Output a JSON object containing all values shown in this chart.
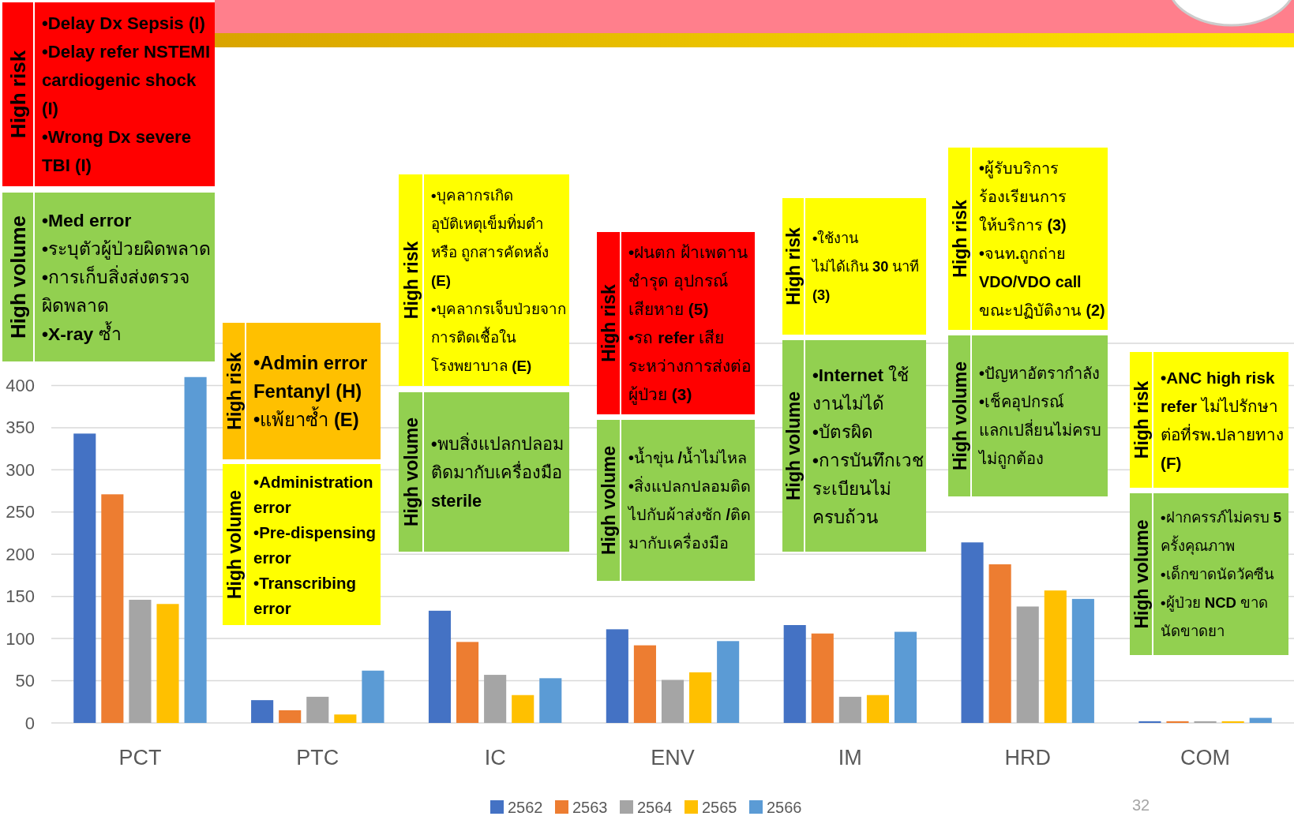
{
  "chart_data": {
    "type": "bar",
    "categories": [
      "PCT",
      "PTC",
      "IC",
      "ENV",
      "IM",
      "HRD",
      "COM"
    ],
    "series": [
      {
        "name": "2562",
        "color": "#4472c4",
        "values": [
          343,
          27,
          133,
          111,
          116,
          214,
          2
        ]
      },
      {
        "name": "2563",
        "color": "#ed7d31",
        "values": [
          271,
          15,
          96,
          92,
          106,
          188,
          2
        ]
      },
      {
        "name": "2564",
        "color": "#a5a5a5",
        "values": [
          146,
          31,
          57,
          51,
          31,
          138,
          2
        ]
      },
      {
        "name": "2565",
        "color": "#ffc000",
        "values": [
          141,
          10,
          33,
          60,
          33,
          157,
          2
        ]
      },
      {
        "name": "2566",
        "color": "#5b9bd5",
        "values": [
          410,
          62,
          53,
          97,
          108,
          147,
          6
        ]
      }
    ],
    "ylim": [
      0,
      450
    ],
    "yticks": [
      0,
      50,
      100,
      150,
      200,
      250,
      300,
      350,
      400,
      {
        "value": 450,
        "label": null
      }
    ],
    "grid": "y",
    "legend": "bottom",
    "annotations": [
      "High risk",
      "•Delay Dx Sepsis (I)\n•Delay refer NSTEMI\ncardiogenic shock\n(I)\n•Wrong Dx severe\nTBI (I)",
      "High volume",
      "•Med error\n•ระบุตัวผู้ป่วยผิดพลาด\n•การเก็บสิ่งส่งตรวจ\nผิดพลาด\n•X-ray ซ้ำ",
      "High risk",
      "•Admin error\nFentanyl (H)\n•แพ้ยาซ้ำ (E)",
      "High volume",
      "•Administration\nerror\n•Pre-dispensing\nerror\n•Transcribing\nerror",
      "High risk",
      "•บุคลากรเกิด\nอุบัติเหตุเข็มทิ่มตำ\nหรือ ถูกสารคัดหลั่ง\n(E)\n•บุคลากรเจ็บป่วยจาก\nการติดเชื้อใน\nโรงพยาบาล (E)",
      "High volume",
      "•พบสิ่งแปลกปลอม\nติดมากับเครื่องมือ\nsterile",
      "High risk",
      "•ฝนตก ฝ้าเพดาน\nชำรุด อุปกรณ์\nเสียหาย (5)\n•รถ refer เสีย\nระหว่างการส่งต่อ\nผู้ป่วย (3)",
      "High volume",
      "•น้ำขุ่น /น้ำไม่ไหล\n•สิ่งแปลกปลอมติด\nไปกับผ้าส่งซัก /ติด\nมากับเครื่องมือ",
      "High risk",
      "•ใช้งาน\nไม่ได้เกิน 30 นาที\n(3)",
      "High volume",
      "•Internet ใช้\nงานไม่ได้\n•บัตรผิด\n•การบันทึกเวช\nระเบียนไม่\nครบถ้วน",
      "High risk",
      "•ผู้รับบริการ\nร้องเรียนการ\nให้บริการ (3)\n•จนท.ถูกถ่าย\nVDO/VDO call\nขณะปฏิบัติงาน (2)",
      "High volume",
      "•ปัญหาอัตรากำลัง\n•เช็คอุปกรณ์\nแลกเปลี่ยนไม่ครบ\nไม่ถูกต้อง",
      "High risk",
      "•ANC high risk\nrefer ไม่ไปรักษา\nต่อที่รพ.ปลายทาง\n(F)",
      "High volume",
      "•ฝากครรภ์ไม่ครบ 5\nครั้งคุณภาพ\n•เด็กขาดนัดวัคซีน\n•ผู้ป่วย NCD ขาด\nนัดขาดยา",
      "32"
    ]
  }
}
